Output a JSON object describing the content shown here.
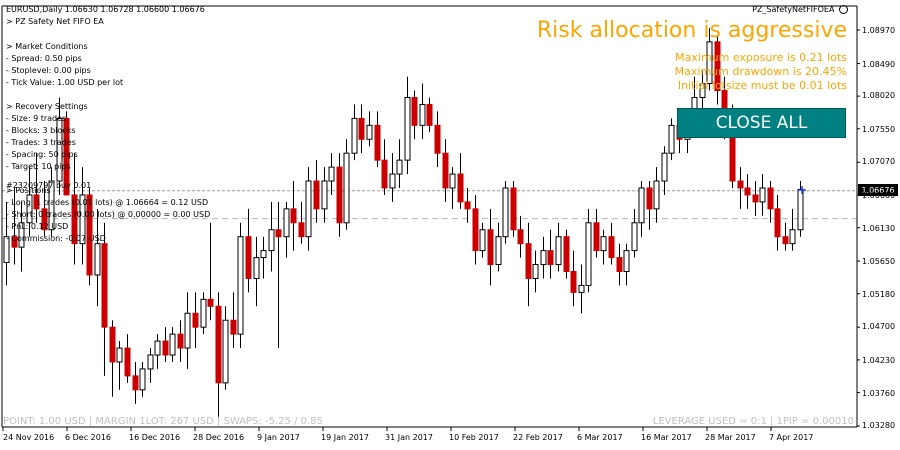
{
  "header": {
    "symbol_line": "EURUSD,Daily  1.06630 1.06728 1.06600 1.06676",
    "ea_title": "> PZ Safety Net FIFO EA",
    "ea_badge": "PZ_SafetyNetFIFOEA"
  },
  "info_panel": {
    "market_conditions_title": "> Market Conditions",
    "spread": "- Spread: 0.50 pips",
    "stoplevel": "- Stoplevel: 0.00 pips",
    "tick_value": "- Tick Value: 1.00 USD per lot",
    "recovery_settings_title": "> Recovery Settings",
    "size": "- Size: 9 trades",
    "blocks": "- Blocks: 3 blocks",
    "trades": "- Trades: 3 trades",
    "spacing": "- Spacing: 50 pips",
    "target": "- Target: 10 pips",
    "positions_title": "> Positions",
    "long": "- Long: 1 trades (0.01 lots) @ 1.06664 = 0.12 USD",
    "short": "- Short: 0 trades (0.00 lots) @ 0.00000 = 0.00 USD",
    "pnl": "- PnL: 0.12 USD",
    "commission": "- Commission: -0.07 USD"
  },
  "order_label": "#23209797 buy 0.01",
  "risk_panel": {
    "title": "Risk allocation is aggressive",
    "max_exposure": "Maximum exposure is 0.21 lots",
    "max_drawdown": "Maximum drawdown is 20.45%",
    "initial_lotsize": "Initial lotsize must be 0.01 lots"
  },
  "close_all_button": "CLOSE ALL",
  "footer": {
    "left": "POINT: 1.00 USD | MARGIN 1LOT: 267 USD | SWAPS: -5.25 / 0.85",
    "right": "LEVERAGE USED = 0:1 | 1PIP = 0.00010"
  },
  "current_price": "1.06676",
  "y_axis": {
    "ticks": [
      "1.08970",
      "1.08490",
      "1.08020",
      "1.07550",
      "1.07070",
      "1.06600",
      "1.06130",
      "1.05650",
      "1.05180",
      "1.04700",
      "1.04230",
      "1.03760",
      "1.03280"
    ],
    "min": 1.0328,
    "max": 1.0897
  },
  "x_axis": {
    "ticks": [
      "24 Nov 2016",
      "6 Dec 2016",
      "16 Dec 2016",
      "28 Dec 2016",
      "9 Jan 2017",
      "19 Jan 2017",
      "31 Jan 2017",
      "10 Feb 2017",
      "22 Feb 2017",
      "6 Mar 2017",
      "16 Mar 2017",
      "28 Mar 2017",
      "7 Apr 2017"
    ]
  },
  "levels": {
    "order_price": 1.0666,
    "ask_price": 1.0626
  },
  "colors": {
    "bull": "#ffffff",
    "bear": "#cc0000",
    "orange": "#ffa500",
    "teal": "#008080"
  },
  "candles": [
    {
      "o": 1.0563,
      "h": 1.065,
      "l": 1.053,
      "c": 1.06
    },
    {
      "o": 1.06,
      "h": 1.067,
      "l": 1.056,
      "c": 1.0585
    },
    {
      "o": 1.0585,
      "h": 1.065,
      "l": 1.055,
      "c": 1.062
    },
    {
      "o": 1.062,
      "h": 1.07,
      "l": 1.06,
      "c": 1.066
    },
    {
      "o": 1.066,
      "h": 1.072,
      "l": 1.062,
      "c": 1.064
    },
    {
      "o": 1.064,
      "h": 1.068,
      "l": 1.06,
      "c": 1.061
    },
    {
      "o": 1.061,
      "h": 1.07,
      "l": 1.06,
      "c": 1.068
    },
    {
      "o": 1.068,
      "h": 1.08,
      "l": 1.066,
      "c": 1.077
    },
    {
      "o": 1.077,
      "h": 1.078,
      "l": 1.066,
      "c": 1.066
    },
    {
      "o": 1.066,
      "h": 1.072,
      "l": 1.056,
      "c": 1.059
    },
    {
      "o": 1.059,
      "h": 1.07,
      "l": 1.056,
      "c": 1.066
    },
    {
      "o": 1.066,
      "h": 1.067,
      "l": 1.053,
      "c": 1.0545
    },
    {
      "o": 1.0545,
      "h": 1.064,
      "l": 1.05,
      "c": 1.059
    },
    {
      "o": 1.059,
      "h": 1.062,
      "l": 1.04,
      "c": 1.047
    },
    {
      "o": 1.047,
      "h": 1.048,
      "l": 1.037,
      "c": 1.042
    },
    {
      "o": 1.042,
      "h": 1.045,
      "l": 1.038,
      "c": 1.044
    },
    {
      "o": 1.044,
      "h": 1.046,
      "l": 1.039,
      "c": 1.04
    },
    {
      "o": 1.04,
      "h": 1.042,
      "l": 1.036,
      "c": 1.038
    },
    {
      "o": 1.038,
      "h": 1.042,
      "l": 1.037,
      "c": 1.041
    },
    {
      "o": 1.041,
      "h": 1.044,
      "l": 1.039,
      "c": 1.043
    },
    {
      "o": 1.043,
      "h": 1.046,
      "l": 1.041,
      "c": 1.045
    },
    {
      "o": 1.045,
      "h": 1.047,
      "l": 1.042,
      "c": 1.043
    },
    {
      "o": 1.043,
      "h": 1.047,
      "l": 1.042,
      "c": 1.046
    },
    {
      "o": 1.046,
      "h": 1.048,
      "l": 1.042,
      "c": 1.044
    },
    {
      "o": 1.044,
      "h": 1.052,
      "l": 1.041,
      "c": 1.049
    },
    {
      "o": 1.049,
      "h": 1.052,
      "l": 1.044,
      "c": 1.047
    },
    {
      "o": 1.047,
      "h": 1.052,
      "l": 1.046,
      "c": 1.051
    },
    {
      "o": 1.051,
      "h": 1.062,
      "l": 1.048,
      "c": 1.05
    },
    {
      "o": 1.05,
      "h": 1.052,
      "l": 1.034,
      "c": 1.039
    },
    {
      "o": 1.039,
      "h": 1.05,
      "l": 1.038,
      "c": 1.048
    },
    {
      "o": 1.048,
      "h": 1.052,
      "l": 1.044,
      "c": 1.046
    },
    {
      "o": 1.046,
      "h": 1.062,
      "l": 1.044,
      "c": 1.06
    },
    {
      "o": 1.06,
      "h": 1.064,
      "l": 1.052,
      "c": 1.054
    },
    {
      "o": 1.054,
      "h": 1.06,
      "l": 1.05,
      "c": 1.057
    },
    {
      "o": 1.057,
      "h": 1.06,
      "l": 1.054,
      "c": 1.058
    },
    {
      "o": 1.058,
      "h": 1.065,
      "l": 1.055,
      "c": 1.061
    },
    {
      "o": 1.061,
      "h": 1.065,
      "l": 1.044,
      "c": 1.06
    },
    {
      "o": 1.06,
      "h": 1.065,
      "l": 1.057,
      "c": 1.064
    },
    {
      "o": 1.064,
      "h": 1.068,
      "l": 1.058,
      "c": 1.062
    },
    {
      "o": 1.062,
      "h": 1.065,
      "l": 1.059,
      "c": 1.06
    },
    {
      "o": 1.06,
      "h": 1.07,
      "l": 1.058,
      "c": 1.068
    },
    {
      "o": 1.068,
      "h": 1.071,
      "l": 1.062,
      "c": 1.064
    },
    {
      "o": 1.064,
      "h": 1.07,
      "l": 1.062,
      "c": 1.068
    },
    {
      "o": 1.068,
      "h": 1.072,
      "l": 1.066,
      "c": 1.07
    },
    {
      "o": 1.07,
      "h": 1.072,
      "l": 1.06,
      "c": 1.062
    },
    {
      "o": 1.062,
      "h": 1.074,
      "l": 1.061,
      "c": 1.072
    },
    {
      "o": 1.072,
      "h": 1.079,
      "l": 1.071,
      "c": 1.077
    },
    {
      "o": 1.077,
      "h": 1.079,
      "l": 1.072,
      "c": 1.074
    },
    {
      "o": 1.074,
      "h": 1.078,
      "l": 1.073,
      "c": 1.076
    },
    {
      "o": 1.076,
      "h": 1.078,
      "l": 1.07,
      "c": 1.071
    },
    {
      "o": 1.071,
      "h": 1.074,
      "l": 1.066,
      "c": 1.067
    },
    {
      "o": 1.067,
      "h": 1.072,
      "l": 1.065,
      "c": 1.069
    },
    {
      "o": 1.069,
      "h": 1.074,
      "l": 1.067,
      "c": 1.071
    },
    {
      "o": 1.071,
      "h": 1.083,
      "l": 1.069,
      "c": 1.08
    },
    {
      "o": 1.08,
      "h": 1.081,
      "l": 1.074,
      "c": 1.076
    },
    {
      "o": 1.076,
      "h": 1.082,
      "l": 1.074,
      "c": 1.079
    },
    {
      "o": 1.079,
      "h": 1.08,
      "l": 1.075,
      "c": 1.076
    },
    {
      "o": 1.076,
      "h": 1.078,
      "l": 1.07,
      "c": 1.072
    },
    {
      "o": 1.072,
      "h": 1.074,
      "l": 1.065,
      "c": 1.067
    },
    {
      "o": 1.067,
      "h": 1.07,
      "l": 1.064,
      "c": 1.069
    },
    {
      "o": 1.069,
      "h": 1.072,
      "l": 1.064,
      "c": 1.065
    },
    {
      "o": 1.065,
      "h": 1.067,
      "l": 1.062,
      "c": 1.064
    },
    {
      "o": 1.064,
      "h": 1.066,
      "l": 1.056,
      "c": 1.058
    },
    {
      "o": 1.058,
      "h": 1.062,
      "l": 1.057,
      "c": 1.061
    },
    {
      "o": 1.061,
      "h": 1.064,
      "l": 1.053,
      "c": 1.056
    },
    {
      "o": 1.056,
      "h": 1.062,
      "l": 1.055,
      "c": 1.06
    },
    {
      "o": 1.06,
      "h": 1.068,
      "l": 1.059,
      "c": 1.067
    },
    {
      "o": 1.067,
      "h": 1.068,
      "l": 1.06,
      "c": 1.061
    },
    {
      "o": 1.061,
      "h": 1.063,
      "l": 1.057,
      "c": 1.059
    },
    {
      "o": 1.059,
      "h": 1.062,
      "l": 1.05,
      "c": 1.054
    },
    {
      "o": 1.054,
      "h": 1.058,
      "l": 1.052,
      "c": 1.056
    },
    {
      "o": 1.056,
      "h": 1.06,
      "l": 1.054,
      "c": 1.058
    },
    {
      "o": 1.058,
      "h": 1.061,
      "l": 1.054,
      "c": 1.056
    },
    {
      "o": 1.056,
      "h": 1.062,
      "l": 1.055,
      "c": 1.06
    },
    {
      "o": 1.06,
      "h": 1.061,
      "l": 1.054,
      "c": 1.055
    },
    {
      "o": 1.055,
      "h": 1.058,
      "l": 1.05,
      "c": 1.052
    },
    {
      "o": 1.052,
      "h": 1.056,
      "l": 1.049,
      "c": 1.053
    },
    {
      "o": 1.053,
      "h": 1.064,
      "l": 1.052,
      "c": 1.062
    },
    {
      "o": 1.062,
      "h": 1.064,
      "l": 1.057,
      "c": 1.058
    },
    {
      "o": 1.058,
      "h": 1.061,
      "l": 1.056,
      "c": 1.06
    },
    {
      "o": 1.06,
      "h": 1.062,
      "l": 1.056,
      "c": 1.057
    },
    {
      "o": 1.057,
      "h": 1.059,
      "l": 1.053,
      "c": 1.055
    },
    {
      "o": 1.055,
      "h": 1.059,
      "l": 1.053,
      "c": 1.058
    },
    {
      "o": 1.058,
      "h": 1.064,
      "l": 1.057,
      "c": 1.062
    },
    {
      "o": 1.062,
      "h": 1.068,
      "l": 1.06,
      "c": 1.067
    },
    {
      "o": 1.067,
      "h": 1.068,
      "l": 1.061,
      "c": 1.064
    },
    {
      "o": 1.064,
      "h": 1.07,
      "l": 1.062,
      "c": 1.068
    },
    {
      "o": 1.068,
      "h": 1.073,
      "l": 1.066,
      "c": 1.072
    },
    {
      "o": 1.072,
      "h": 1.077,
      "l": 1.071,
      "c": 1.076
    },
    {
      "o": 1.076,
      "h": 1.078,
      "l": 1.072,
      "c": 1.074
    },
    {
      "o": 1.074,
      "h": 1.078,
      "l": 1.072,
      "c": 1.077
    },
    {
      "o": 1.077,
      "h": 1.083,
      "l": 1.075,
      "c": 1.08
    },
    {
      "o": 1.08,
      "h": 1.084,
      "l": 1.078,
      "c": 1.082
    },
    {
      "o": 1.082,
      "h": 1.09,
      "l": 1.081,
      "c": 1.088
    },
    {
      "o": 1.088,
      "h": 1.089,
      "l": 1.079,
      "c": 1.081
    },
    {
      "o": 1.081,
      "h": 1.083,
      "l": 1.074,
      "c": 1.076
    },
    {
      "o": 1.076,
      "h": 1.079,
      "l": 1.067,
      "c": 1.068
    },
    {
      "o": 1.068,
      "h": 1.07,
      "l": 1.064,
      "c": 1.067
    },
    {
      "o": 1.067,
      "h": 1.069,
      "l": 1.064,
      "c": 1.066
    },
    {
      "o": 1.066,
      "h": 1.068,
      "l": 1.063,
      "c": 1.065
    },
    {
      "o": 1.065,
      "h": 1.069,
      "l": 1.063,
      "c": 1.067
    },
    {
      "o": 1.067,
      "h": 1.068,
      "l": 1.062,
      "c": 1.064
    },
    {
      "o": 1.064,
      "h": 1.066,
      "l": 1.058,
      "c": 1.06
    },
    {
      "o": 1.06,
      "h": 1.062,
      "l": 1.058,
      "c": 1.059
    },
    {
      "o": 1.059,
      "h": 1.064,
      "l": 1.058,
      "c": 1.061
    },
    {
      "o": 1.061,
      "h": 1.068,
      "l": 1.06,
      "c": 1.0668
    }
  ]
}
